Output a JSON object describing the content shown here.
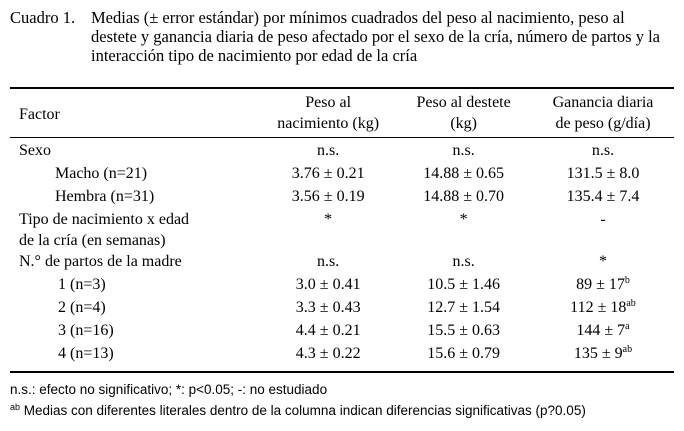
{
  "caption": {
    "label": "Cuadro 1.",
    "text": "Medias (± error estándar) por mínimos cuadrados del peso al nacimiento, peso al destete y ganancia diaria de peso afectado por el sexo de la cría, número de partos y la interacción tipo de nacimiento por edad de la cría"
  },
  "table": {
    "headers": {
      "factor": "Factor",
      "col1_line1": "Peso al",
      "col1_line2": "nacimiento (kg)",
      "col2_line1": "Peso al destete",
      "col2_line2": "(kg)",
      "col3_line1": "Ganancia diaria",
      "col3_line2": "de peso (g/día)"
    },
    "sexo": {
      "label": "Sexo",
      "v1": "n.s.",
      "v2": "n.s.",
      "v3": "n.s."
    },
    "macho": {
      "label": "Macho (n=21)",
      "v1": "3.76 ± 0.21",
      "v2": "14.88 ± 0.65",
      "v3": "131.5 ± 8.0"
    },
    "hembra": {
      "label": "Hembra (n=31)",
      "v1": "3.56 ± 0.19",
      "v2": "14.88 ± 0.70",
      "v3": "135.4 ± 7.4"
    },
    "tipo": {
      "label_line1": "Tipo de nacimiento x edad",
      "label_line2": "de la cría (en semanas)",
      "v1": "*",
      "v2": "*",
      "v3": "-"
    },
    "partos": {
      "label": "N.° de partos de la madre",
      "v1": "n.s.",
      "v2": "n.s.",
      "v3": "*"
    },
    "p1": {
      "label": "1 (n=3)",
      "v1": "3.0 ± 0.41",
      "v2": "10.5 ± 1.46",
      "v3": "89 ± 17",
      "v3_sup": "b"
    },
    "p2": {
      "label": "2 (n=4)",
      "v1": "3.3 ± 0.43",
      "v2": "12.7 ± 1.54",
      "v3": "112 ± 18",
      "v3_sup": "ab"
    },
    "p3": {
      "label": "3 (n=16)",
      "v1": "4.4 ± 0.21",
      "v2": "15.5 ± 0.63",
      "v3": "144 ± 7",
      "v3_sup": "a"
    },
    "p4": {
      "label": "4 (n=13)",
      "v1": "4.3 ± 0.22",
      "v2": "15.6 ± 0.79",
      "v3": "135 ± 9",
      "v3_sup": "ab"
    }
  },
  "notes": {
    "line1": "n.s.: efecto no significativo; *: p<0.05; -: no estudiado",
    "line2_sup": "ab",
    "line2": " Medias con diferentes literales dentro de la columna indican diferencias significativas (p?0.05)"
  }
}
